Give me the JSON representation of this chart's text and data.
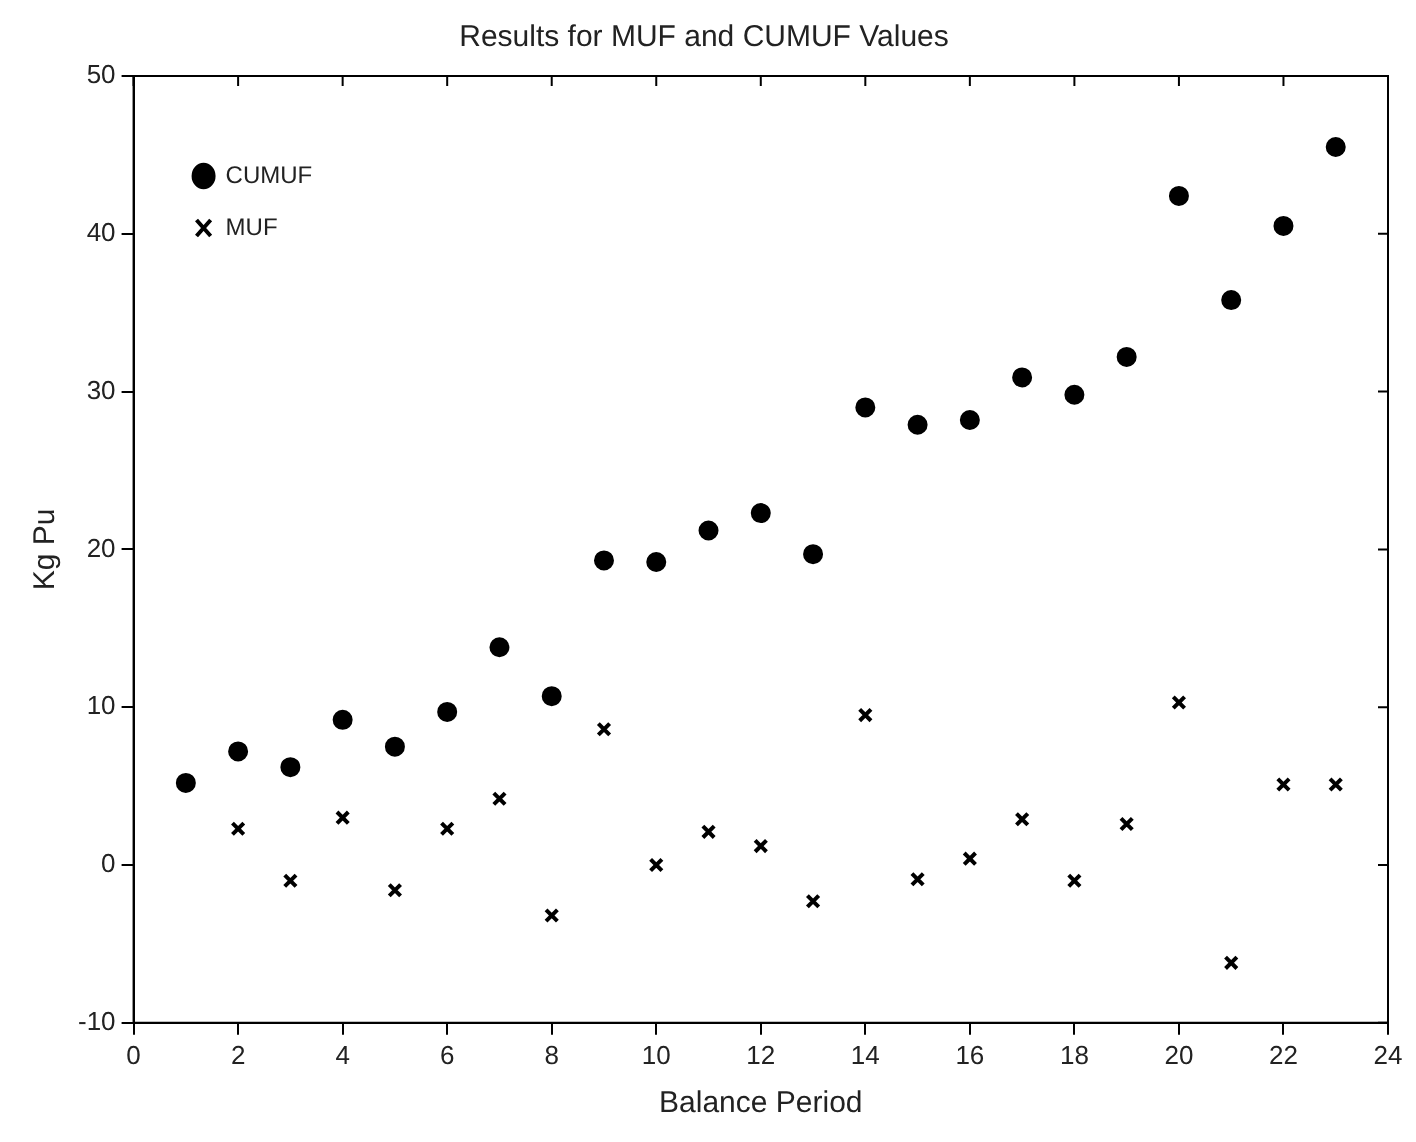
{
  "chart_data": {
    "type": "scatter",
    "title": "Results for MUF and CUMUF Values",
    "xlabel": "Balance Period",
    "ylabel": "Kg Pu",
    "x": [
      1,
      2,
      3,
      4,
      5,
      6,
      7,
      8,
      9,
      10,
      11,
      12,
      13,
      14,
      15,
      16,
      17,
      18,
      19,
      20,
      21,
      22,
      23
    ],
    "series": [
      {
        "name": "CUMUF",
        "color": "#000000",
        "marker": "circle",
        "values": [
          5.2,
          7.2,
          6.2,
          9.2,
          7.5,
          9.7,
          13.8,
          10.7,
          19.3,
          19.2,
          21.2,
          22.3,
          19.7,
          29.0,
          27.9,
          28.2,
          30.9,
          29.8,
          32.2,
          42.4,
          35.8,
          40.5,
          45.5
        ]
      },
      {
        "name": "MUF",
        "color": "#000000",
        "marker": "cross",
        "values": [
          null,
          2.3,
          -1.0,
          3.0,
          -1.6,
          2.3,
          4.2,
          -3.2,
          8.6,
          0.0,
          2.1,
          1.2,
          -2.3,
          9.5,
          -0.9,
          0.4,
          2.9,
          -1.0,
          2.6,
          10.3,
          -6.2,
          5.1,
          5.1
        ]
      }
    ],
    "xlim": [
      0,
      24
    ],
    "xticks": [
      0,
      2,
      4,
      6,
      8,
      10,
      12,
      14,
      16,
      18,
      20,
      22,
      24
    ],
    "ylim": [
      -10,
      50
    ],
    "yticks": [
      -10,
      0,
      10,
      20,
      30,
      40,
      50
    ],
    "grid": false,
    "legend": "top left"
  }
}
